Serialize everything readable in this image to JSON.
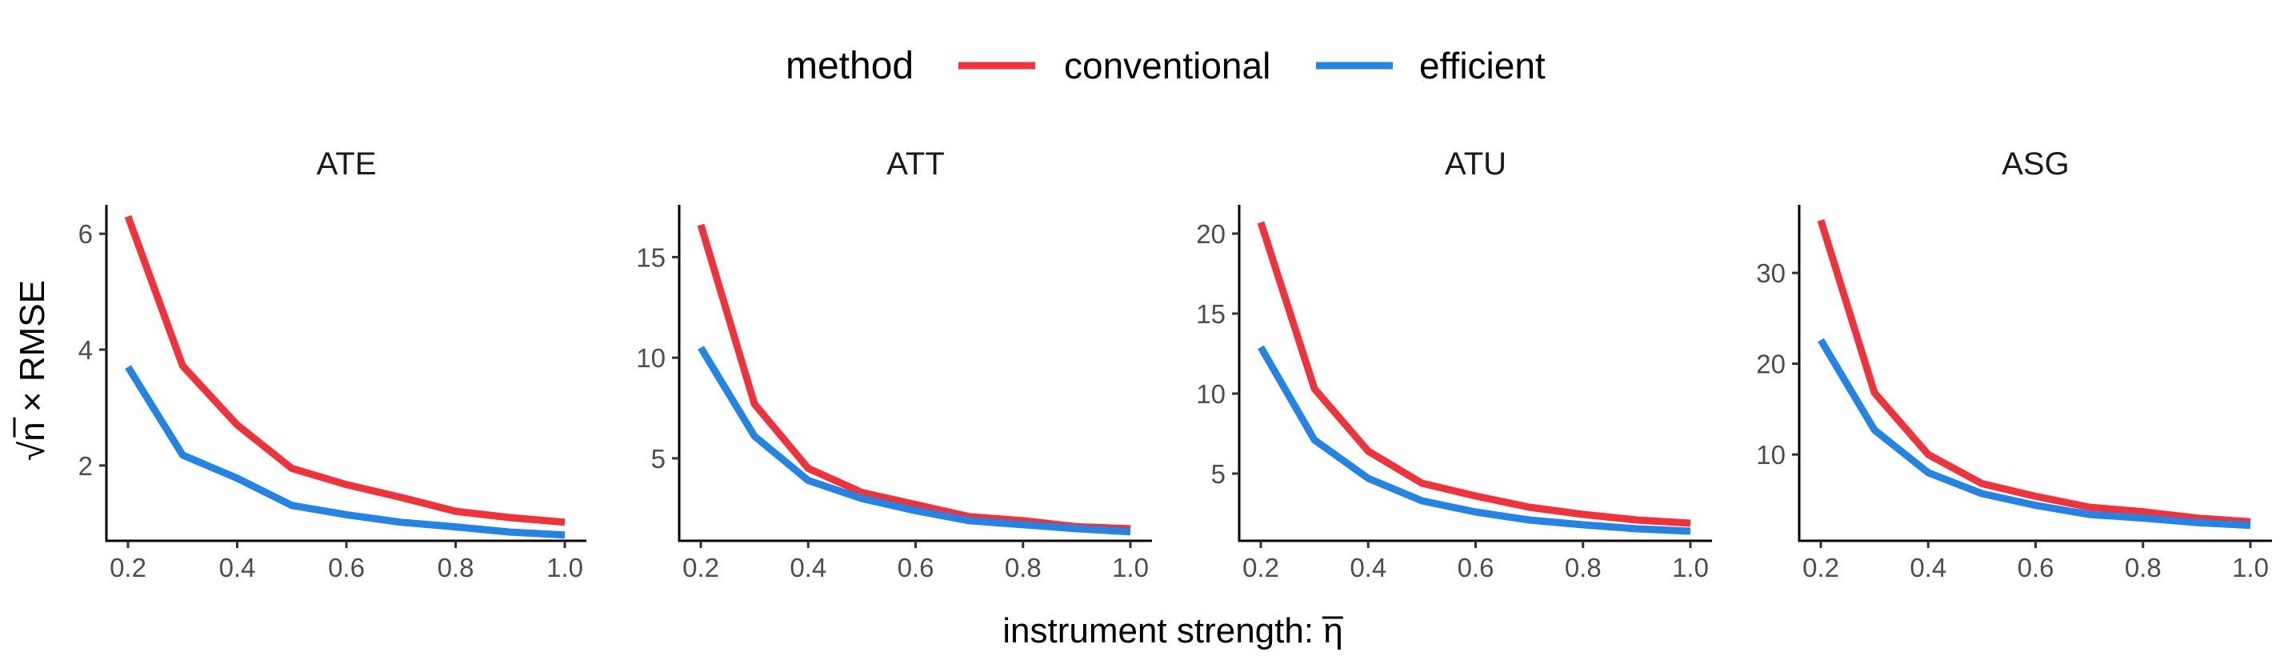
{
  "chart_data": {
    "type": "line",
    "legend": {
      "title": "method",
      "position": "top",
      "entries": [
        {
          "name": "conventional",
          "color": "#F2323A"
        },
        {
          "name": "efficient",
          "color": "#2384E6"
        }
      ]
    },
    "xlabel": "instrument strength: η",
    "xlabel_overline_symbol": "η",
    "ylabel": "√n × RMSE",
    "xlim": [
      0.2,
      1.0
    ],
    "x": [
      0.2,
      0.3,
      0.4,
      0.5,
      0.6,
      0.7,
      0.8,
      0.9,
      1.0
    ],
    "xticks": [
      0.2,
      0.4,
      0.6,
      0.8,
      1.0
    ],
    "xtick_labels": [
      "0.2",
      "0.4",
      "0.6",
      "0.8",
      "1.0"
    ],
    "grid": false,
    "panels": [
      {
        "title": "ATE",
        "ylim": [
          0.7,
          6.5
        ],
        "yticks": [
          2,
          4,
          6
        ],
        "ytick_labels": [
          "2",
          "4",
          "6"
        ],
        "series": [
          {
            "name": "conventional",
            "values": [
              6.3,
              3.72,
              2.7,
              1.95,
              1.67,
              1.45,
              1.21,
              1.1,
              1.02
            ]
          },
          {
            "name": "efficient",
            "values": [
              3.7,
              2.18,
              1.78,
              1.31,
              1.15,
              1.02,
              0.94,
              0.85,
              0.8
            ]
          }
        ]
      },
      {
        "title": "ATT",
        "ylim": [
          0.9,
          17.6
        ],
        "yticks": [
          5,
          10,
          15
        ],
        "ytick_labels": [
          "5",
          "10",
          "15"
        ],
        "series": [
          {
            "name": "conventional",
            "values": [
              16.6,
              7.7,
              4.5,
              3.3,
              2.7,
              2.1,
              1.9,
              1.6,
              1.5
            ]
          },
          {
            "name": "efficient",
            "values": [
              10.5,
              6.1,
              3.9,
              3.0,
              2.4,
              1.9,
              1.7,
              1.5,
              1.35
            ]
          }
        ]
      },
      {
        "title": "ATU",
        "ylim": [
          0.8,
          21.8
        ],
        "yticks": [
          5,
          10,
          15,
          20
        ],
        "ytick_labels": [
          "5",
          "10",
          "15",
          "20"
        ],
        "series": [
          {
            "name": "conventional",
            "values": [
              20.7,
              10.3,
              6.4,
              4.4,
              3.6,
              2.9,
              2.45,
              2.1,
              1.9
            ]
          },
          {
            "name": "efficient",
            "values": [
              12.9,
              7.1,
              4.7,
              3.3,
              2.6,
              2.1,
              1.8,
              1.55,
              1.4
            ]
          }
        ]
      },
      {
        "title": "ASG",
        "ylim": [
          0.5,
          37.5
        ],
        "yticks": [
          10,
          20,
          30
        ],
        "ytick_labels": [
          "10",
          "20",
          "30"
        ],
        "series": [
          {
            "name": "conventional",
            "values": [
              35.8,
              16.8,
              10.0,
              6.8,
              5.4,
              4.2,
              3.7,
              3.0,
              2.6
            ]
          },
          {
            "name": "efficient",
            "values": [
              22.6,
              12.7,
              8.0,
              5.7,
              4.4,
              3.4,
              3.0,
              2.5,
              2.2
            ]
          }
        ]
      }
    ]
  }
}
